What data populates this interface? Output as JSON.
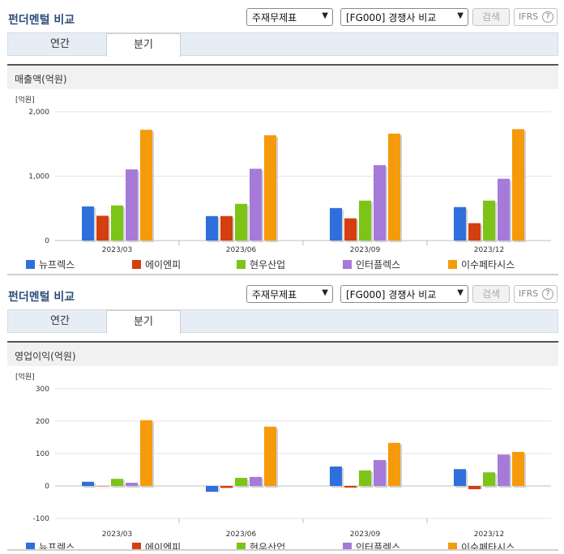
{
  "sections": [
    {
      "title": "펀더멘털 비교",
      "select1": "주재무제표",
      "select2": "[FG000] 경쟁사 비교",
      "search_label": "검색",
      "ifrs_label": "IFRS",
      "tabs": [
        "연간",
        "분기"
      ],
      "active_tab": "분기",
      "chart_title": "매출액(억원)"
    },
    {
      "title": "펀더멘털 비교",
      "select1": "주재무제표",
      "select2": "[FG000] 경쟁사 비교",
      "search_label": "검색",
      "ifrs_label": "IFRS",
      "tabs": [
        "연간",
        "분기"
      ],
      "active_tab": "분기",
      "chart_title": "영업이익(억원)"
    }
  ],
  "help_icon": "question-circle-icon",
  "colors": {
    "뉴프렉스": "#2f6fdc",
    "에이엔피": "#d43f10",
    "현우산업": "#7cc417",
    "인터플렉스": "#a57ad8",
    "이수페타시스": "#f59a0a"
  },
  "chart_data": [
    {
      "type": "bar",
      "ylabel": "[억원]",
      "categories": [
        "2023/03",
        "2023/06",
        "2023/09",
        "2023/12"
      ],
      "ylim": [
        0,
        2000
      ],
      "yticks": [
        "0",
        "1,000",
        "2,000"
      ],
      "ytick_values": [
        0,
        1000,
        2000
      ],
      "legend_position": "bottom",
      "series": [
        {
          "name": "뉴프렉스",
          "values": [
            530,
            380,
            505,
            520
          ]
        },
        {
          "name": "에이엔피",
          "values": [
            385,
            380,
            345,
            270
          ]
        },
        {
          "name": "현우산업",
          "values": [
            545,
            570,
            620,
            620
          ]
        },
        {
          "name": "인터플렉스",
          "values": [
            1105,
            1115,
            1170,
            960
          ]
        },
        {
          "name": "이수페타시스",
          "values": [
            1720,
            1635,
            1660,
            1730
          ]
        }
      ]
    },
    {
      "type": "bar",
      "ylabel": "[억원]",
      "categories": [
        "2023/03",
        "2023/06",
        "2023/09",
        "2023/12"
      ],
      "ylim": [
        -100,
        300
      ],
      "yticks": [
        "-100",
        "0",
        "100",
        "200",
        "300"
      ],
      "ytick_values": [
        -100,
        0,
        100,
        200,
        300
      ],
      "legend_position": "bottom",
      "series": [
        {
          "name": "뉴프렉스",
          "values": [
            13,
            -18,
            60,
            52
          ]
        },
        {
          "name": "에이엔피",
          "values": [
            0,
            -6,
            -5,
            -10
          ]
        },
        {
          "name": "현우산업",
          "values": [
            22,
            25,
            48,
            42
          ]
        },
        {
          "name": "인터플렉스",
          "values": [
            10,
            28,
            80,
            97
          ]
        },
        {
          "name": "이수페타시스",
          "values": [
            203,
            183,
            133,
            105
          ]
        }
      ]
    }
  ]
}
